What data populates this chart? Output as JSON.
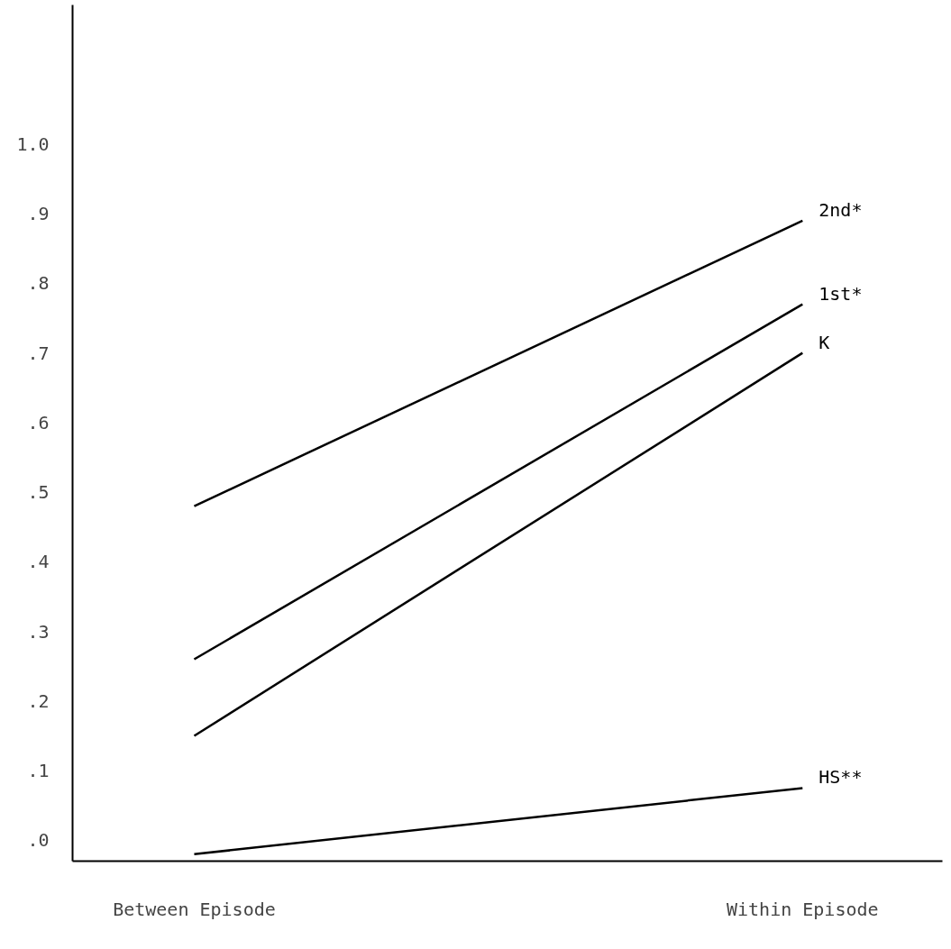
{
  "chart_data": {
    "type": "line",
    "categories": [
      "Between Episode",
      "Within Episode"
    ],
    "series": [
      {
        "name": "2nd*",
        "color": "#000000",
        "values": [
          0.48,
          0.89
        ]
      },
      {
        "name": "1st*",
        "color": "#000000",
        "values": [
          0.26,
          0.77
        ]
      },
      {
        "name": "K",
        "color": "#000000",
        "values": [
          0.15,
          0.7
        ]
      },
      {
        "name": "HS**",
        "color": "#000000",
        "values": [
          -0.02,
          0.075
        ]
      }
    ],
    "ylim": [
      -0.03,
      1.2
    ],
    "yticks": [
      {
        "value": 0,
        "label": ".0"
      },
      {
        "value": 0.1,
        "label": ".1"
      },
      {
        "value": 0.2,
        "label": ".2"
      },
      {
        "value": 0.3,
        "label": ".3"
      },
      {
        "value": 0.4,
        "label": ".4"
      },
      {
        "value": 0.5,
        "label": ".5"
      },
      {
        "value": 0.6,
        "label": ".6"
      },
      {
        "value": 0.7,
        "label": ".7"
      },
      {
        "value": 0.8,
        "label": ".8"
      },
      {
        "value": 0.9,
        "label": ".9"
      },
      {
        "value": 1.0,
        "label": "1.0"
      }
    ],
    "marker": "none",
    "line_style": "solid"
  }
}
